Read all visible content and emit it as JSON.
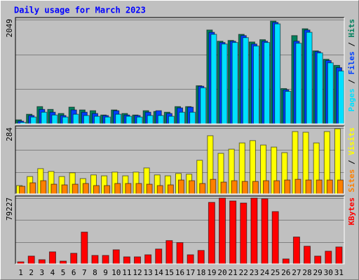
{
  "title": "Daily usage for March 2023",
  "legend_separator": " / ",
  "chart_data": [
    {
      "type": "bar",
      "ylim": [
        0,
        2049
      ],
      "yticks": [
        2049
      ],
      "grid_lines": [
        683,
        1366
      ],
      "series": [
        {
          "name": "Hits",
          "color": "#00805c",
          "values": [
            80,
            190,
            340,
            285,
            205,
            330,
            275,
            260,
            175,
            275,
            205,
            175,
            260,
            245,
            230,
            340,
            340,
            750,
            1845,
            1625,
            1640,
            1760,
            1610,
            1655,
            2020,
            695,
            1735,
            1870,
            1435,
            1270,
            1150
          ]
        },
        {
          "name": "Files",
          "color": "#0040ff",
          "values": [
            55,
            165,
            285,
            230,
            165,
            275,
            230,
            205,
            165,
            260,
            175,
            165,
            230,
            260,
            205,
            315,
            330,
            740,
            1800,
            1600,
            1625,
            1735,
            1570,
            1625,
            1995,
            670,
            1625,
            1845,
            1420,
            1245,
            1105
          ]
        },
        {
          "name": "Pages",
          "color": "#00e0ff",
          "values": [
            30,
            135,
            230,
            175,
            135,
            190,
            165,
            150,
            135,
            190,
            150,
            135,
            165,
            165,
            150,
            230,
            230,
            710,
            1760,
            1570,
            1600,
            1695,
            1530,
            1600,
            1965,
            640,
            1585,
            1800,
            1395,
            1200,
            1040
          ]
        }
      ]
    },
    {
      "type": "bar",
      "ylim": [
        0,
        284
      ],
      "yticks": [
        284
      ],
      "grid_lines": [
        95,
        189
      ],
      "series": [
        {
          "name": "Visits",
          "color": "#ffff00",
          "values": [
            36,
            75,
            109,
            97,
            75,
            91,
            66,
            82,
            78,
            94,
            78,
            94,
            112,
            82,
            78,
            88,
            85,
            145,
            251,
            175,
            193,
            220,
            230,
            211,
            202,
            178,
            269,
            266,
            220,
            269,
            281
          ]
        },
        {
          "name": "Sites",
          "color": "#ff8000",
          "values": [
            33,
            48,
            57,
            42,
            39,
            42,
            45,
            36,
            36,
            45,
            45,
            45,
            42,
            36,
            39,
            60,
            57,
            45,
            63,
            51,
            57,
            54,
            54,
            57,
            57,
            60,
            63,
            60,
            60,
            60,
            60
          ]
        }
      ]
    },
    {
      "type": "bar",
      "ylim": [
        0,
        79227
      ],
      "yticks": [
        79227
      ],
      "grid_lines": [
        26409,
        52818
      ],
      "series": [
        {
          "name": "KBytes",
          "color": "#ff0000",
          "values": [
            2500,
            9400,
            5100,
            14500,
            3400,
            12800,
            38300,
            10200,
            10200,
            17000,
            8500,
            8500,
            11000,
            17900,
            28100,
            25600,
            11000,
            16200,
            74100,
            79200,
            75800,
            73300,
            79200,
            78400,
            63000,
            6000,
            32400,
            21300,
            9400,
            15300,
            20400
          ]
        }
      ],
      "categories": [
        "1",
        "2",
        "3",
        "4",
        "5",
        "6",
        "7",
        "8",
        "9",
        "10",
        "11",
        "12",
        "13",
        "14",
        "15",
        "16",
        "17",
        "18",
        "19",
        "20",
        "21",
        "22",
        "23",
        "24",
        "25",
        "26",
        "27",
        "28",
        "29",
        "30",
        "31"
      ],
      "category_colors": [
        "#000000",
        "#000000",
        "#000000",
        "#00805c",
        "#00805c",
        "#000000",
        "#000000",
        "#000000",
        "#000000",
        "#000000",
        "#00805c",
        "#00805c",
        "#000000",
        "#000000",
        "#000000",
        "#000000",
        "#000000",
        "#00805c",
        "#00805c",
        "#000000",
        "#000000",
        "#000000",
        "#000000",
        "#000000",
        "#00805c",
        "#00805c",
        "#000000",
        "#000000",
        "#000000",
        "#000000",
        "#000000"
      ]
    }
  ]
}
